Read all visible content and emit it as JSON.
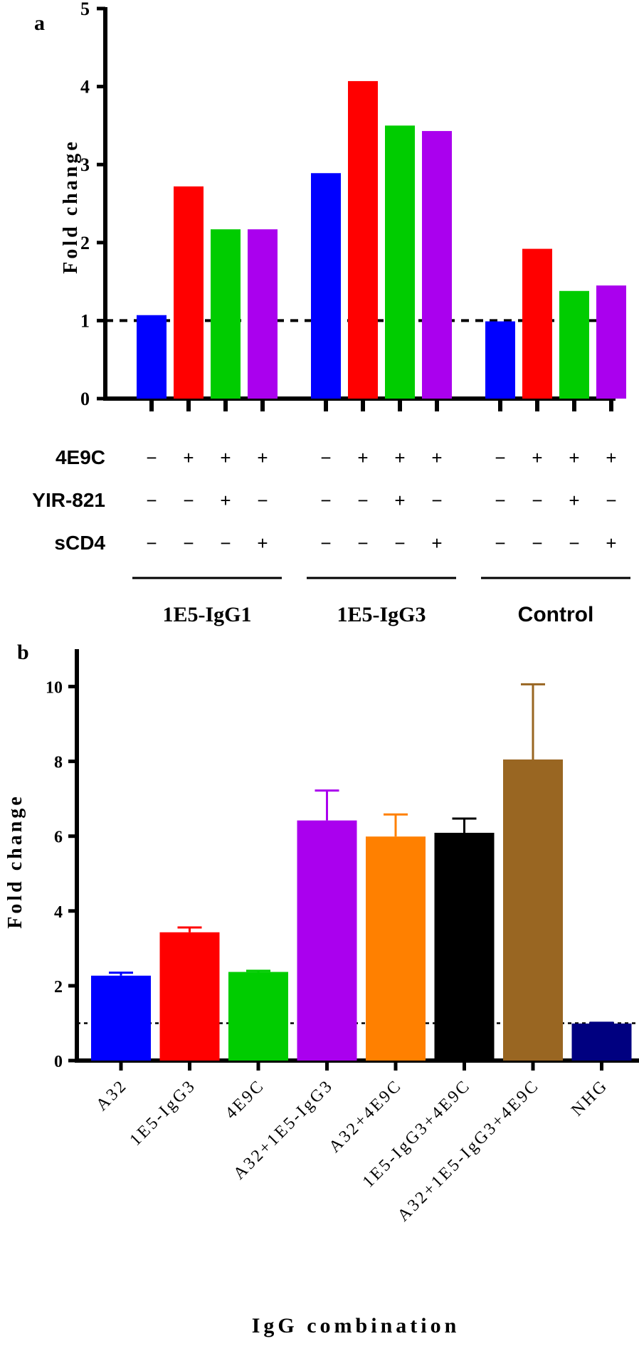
{
  "panels": {
    "a": {
      "label": "a",
      "rows": [
        {
          "name": "4E9C",
          "signs": [
            "−",
            "+",
            "+",
            "+",
            "−",
            "+",
            "+",
            "+",
            "−",
            "+",
            "+",
            "+"
          ]
        },
        {
          "name": "YIR-821",
          "signs": [
            "−",
            "−",
            "+",
            "−",
            "−",
            "−",
            "+",
            "−",
            "−",
            "−",
            "+",
            "−"
          ]
        },
        {
          "name": "sCD4",
          "signs": [
            "−",
            "−",
            "−",
            "+",
            "−",
            "−",
            "−",
            "+",
            "−",
            "−",
            "−",
            "+"
          ]
        }
      ],
      "groups": [
        "1E5-IgG1",
        "1E5-IgG3",
        "Control"
      ]
    },
    "b": {
      "label": "b"
    }
  },
  "colors": {
    "blue": "#0000ff",
    "red": "#ff0000",
    "green": "#00cc00",
    "purple": "#aa00ee",
    "orange": "#ff8000",
    "black": "#000000",
    "brown": "#996622",
    "navy": "#000080"
  },
  "chart_data": [
    {
      "type": "bar",
      "panel": "a",
      "ylabel": "Fold change",
      "xlabel": "",
      "ylim": [
        0,
        5
      ],
      "yticks": [
        0,
        1,
        2,
        3,
        4,
        5
      ],
      "reference_line": 1,
      "groups": [
        "1E5-IgG1",
        "1E5-IgG3",
        "Control"
      ],
      "conditions": [
        {
          "4E9C": "−",
          "YIR-821": "−",
          "sCD4": "−",
          "color": "#0000ff"
        },
        {
          "4E9C": "+",
          "YIR-821": "−",
          "sCD4": "−",
          "color": "#ff0000"
        },
        {
          "4E9C": "+",
          "YIR-821": "+",
          "sCD4": "−",
          "color": "#00cc00"
        },
        {
          "4E9C": "+",
          "YIR-821": "−",
          "sCD4": "+",
          "color": "#aa00ee"
        }
      ],
      "values": [
        [
          1.07,
          2.72,
          2.17,
          2.17
        ],
        [
          2.89,
          4.07,
          3.5,
          3.43
        ],
        [
          0.99,
          1.92,
          1.38,
          1.45
        ]
      ]
    },
    {
      "type": "bar",
      "panel": "b",
      "ylabel": "Fold change",
      "xlabel": "IgG combination",
      "ylim": [
        0,
        11
      ],
      "yticks": [
        0,
        2,
        4,
        6,
        8,
        10
      ],
      "reference_line": 1,
      "categories": [
        "A32",
        "1E5-IgG3",
        "4E9C",
        "A32+1E5-IgG3",
        "A32+4E9C",
        "1E5-IgG3+4E9C",
        "A32+1E5-IgG3+4E9C",
        "NHG"
      ],
      "values": [
        2.27,
        3.43,
        2.37,
        6.42,
        5.99,
        6.09,
        8.05,
        0.99
      ],
      "errors": [
        0.08,
        0.13,
        0.03,
        0.8,
        0.59,
        0.38,
        2.01,
        0.02
      ],
      "colors": [
        "#0000ff",
        "#ff0000",
        "#00cc00",
        "#aa00ee",
        "#ff8000",
        "#000000",
        "#996622",
        "#000080"
      ]
    }
  ]
}
